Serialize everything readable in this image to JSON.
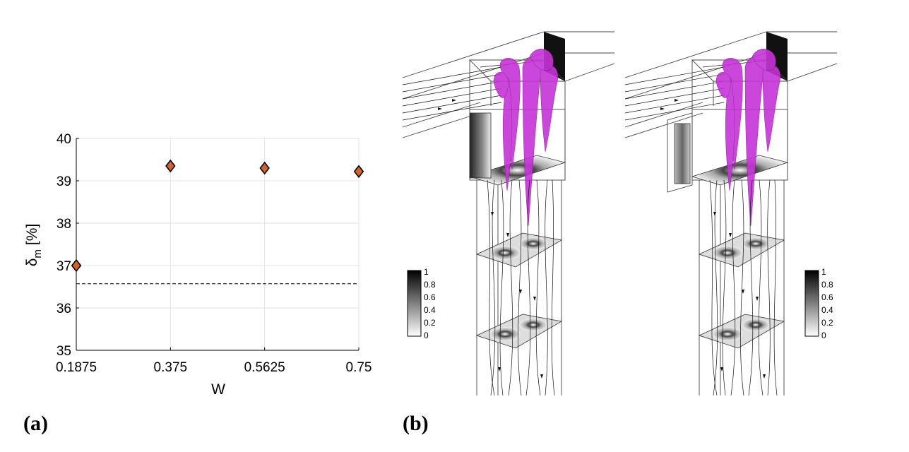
{
  "panels": {
    "a": {
      "label": "(a)"
    },
    "b": {
      "label": "(b)"
    }
  },
  "chart_data": {
    "type": "scatter",
    "xlabel": "W",
    "ylabel": "δm [%]",
    "ylabel_symbol": "δ",
    "ylabel_subscript": "m",
    "ylabel_unit": "[%]",
    "x_tick_labels": [
      "0.1875",
      "0.375",
      "0.5625",
      "0.75"
    ],
    "x_ticks": [
      0.1875,
      0.375,
      0.5625,
      0.75
    ],
    "y_ticks": [
      35,
      36,
      37,
      38,
      39,
      40
    ],
    "xlim": [
      0.1875,
      0.75
    ],
    "ylim": [
      35,
      40
    ],
    "grid": true,
    "marker": "diamond",
    "marker_color": "#d4622b",
    "series": [
      {
        "x": [
          0.1875,
          0.375,
          0.5625,
          0.75
        ],
        "y": [
          37.0,
          39.35,
          39.3,
          39.22
        ]
      }
    ],
    "reference_line": {
      "y": 36.57,
      "style": "dashed"
    }
  },
  "colorbars": {
    "ticks": [
      "1",
      "0.8",
      "0.6",
      "0.4",
      "0.2",
      "0"
    ]
  },
  "colors": {
    "isosurface": "#c633d6",
    "marker": "#d4622b"
  }
}
